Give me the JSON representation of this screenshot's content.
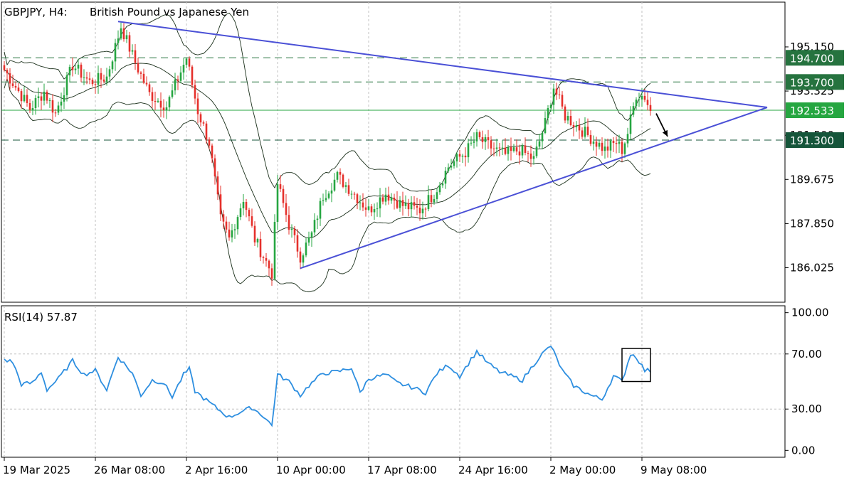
{
  "header": {
    "symbol_timeframe": "GBPJPY, H4:",
    "description": "British Pound vs Japanese Yen"
  },
  "colors": {
    "bull": "#26a641",
    "bear": "#e5302b",
    "trendline": "#4a50d6",
    "rsi": "#2e8fe0",
    "level": "#26733f",
    "level_dark": "#15553a",
    "current": "#26a641",
    "bands": "#1a2f1a",
    "grid": "#c0c0c0"
  },
  "chart_data": [
    {
      "type": "candlestick",
      "title": "GBPJPY, H4:  British Pound vs Japanese Yen",
      "ylim": [
        184.6,
        197.0
      ],
      "yticks": [
        {
          "label": "195.150",
          "value": 195.15
        },
        {
          "label": "193.325",
          "value": 193.325
        },
        {
          "label": "191.500",
          "value": 191.5
        },
        {
          "label": "189.675",
          "value": 189.675
        },
        {
          "label": "187.850",
          "value": 187.85
        },
        {
          "label": "186.025",
          "value": 186.025
        }
      ],
      "xticks": [
        {
          "label": "19 Mar 2025",
          "index": 0
        },
        {
          "label": "26 Mar 08:00",
          "index": 32
        },
        {
          "label": "2 Apr 16:00",
          "index": 64
        },
        {
          "label": "10 Apr 00:00",
          "index": 96
        },
        {
          "label": "17 Apr 08:00",
          "index": 128
        },
        {
          "label": "24 Apr 16:00",
          "index": 160
        },
        {
          "label": "2 May 00:00",
          "index": 192
        },
        {
          "label": "9 May 08:00",
          "index": 224
        }
      ],
      "levels": [
        {
          "label": "194.700",
          "value": 194.7,
          "style": "dashed"
        },
        {
          "label": "193.700",
          "value": 193.7,
          "style": "dashed"
        },
        {
          "label": "191.300",
          "value": 191.3,
          "style": "dashed",
          "dark": true
        }
      ],
      "current_price": {
        "label": "192.533",
        "value": 192.533
      },
      "trendlines": [
        {
          "from": {
            "index": 40,
            "value": 196.2
          },
          "to": {
            "index": 268,
            "value": 192.65
          }
        },
        {
          "from": {
            "index": 104,
            "value": 186.0
          },
          "to": {
            "index": 268,
            "value": 192.65
          }
        }
      ],
      "forecast_arrow": {
        "from": {
          "index": 229,
          "value": 192.4
        },
        "to": {
          "index": 233,
          "value": 191.45
        }
      },
      "anchors": [
        {
          "i": 0,
          "v": 194.2
        },
        {
          "i": 4,
          "v": 193.5
        },
        {
          "i": 9,
          "v": 192.6
        },
        {
          "i": 14,
          "v": 193.3
        },
        {
          "i": 18,
          "v": 192.4
        },
        {
          "i": 24,
          "v": 194.4
        },
        {
          "i": 30,
          "v": 193.7
        },
        {
          "i": 36,
          "v": 193.9
        },
        {
          "i": 41,
          "v": 196.0
        },
        {
          "i": 46,
          "v": 194.5
        },
        {
          "i": 51,
          "v": 193.2
        },
        {
          "i": 57,
          "v": 192.7
        },
        {
          "i": 64,
          "v": 194.7
        },
        {
          "i": 68,
          "v": 192.5
        },
        {
          "i": 72,
          "v": 191.2
        },
        {
          "i": 76,
          "v": 188.0
        },
        {
          "i": 79,
          "v": 187.2
        },
        {
          "i": 84,
          "v": 188.9
        },
        {
          "i": 88,
          "v": 187.2
        },
        {
          "i": 94,
          "v": 185.8
        },
        {
          "i": 96,
          "v": 189.5
        },
        {
          "i": 100,
          "v": 187.8
        },
        {
          "i": 104,
          "v": 186.5
        },
        {
          "i": 108,
          "v": 187.4
        },
        {
          "i": 112,
          "v": 189.0
        },
        {
          "i": 117,
          "v": 189.8
        },
        {
          "i": 122,
          "v": 189.2
        },
        {
          "i": 128,
          "v": 188.4
        },
        {
          "i": 134,
          "v": 189.1
        },
        {
          "i": 140,
          "v": 188.6
        },
        {
          "i": 146,
          "v": 188.4
        },
        {
          "i": 151,
          "v": 189.1
        },
        {
          "i": 156,
          "v": 190.2
        },
        {
          "i": 162,
          "v": 190.8
        },
        {
          "i": 166,
          "v": 191.4
        },
        {
          "i": 171,
          "v": 191.0
        },
        {
          "i": 176,
          "v": 190.7
        },
        {
          "i": 181,
          "v": 190.9
        },
        {
          "i": 186,
          "v": 190.5
        },
        {
          "i": 190,
          "v": 192.0
        },
        {
          "i": 193,
          "v": 193.5
        },
        {
          "i": 197,
          "v": 192.3
        },
        {
          "i": 202,
          "v": 191.8
        },
        {
          "i": 207,
          "v": 191.3
        },
        {
          "i": 211,
          "v": 190.9
        },
        {
          "i": 215,
          "v": 191.2
        },
        {
          "i": 217,
          "v": 190.9
        },
        {
          "i": 219,
          "v": 191.6
        },
        {
          "i": 222,
          "v": 193.2
        },
        {
          "i": 225,
          "v": 193.1
        },
        {
          "i": 227,
          "v": 192.5
        }
      ]
    },
    {
      "type": "line",
      "title": "RSI(14) 57.87",
      "series": [
        {
          "name": "RSI(14)",
          "last": 57.87
        }
      ],
      "ylim": [
        -5,
        105
      ],
      "yticks": [
        {
          "label": "100.00",
          "value": 100
        },
        {
          "label": "70.00",
          "value": 70
        },
        {
          "label": "30.00",
          "value": 30
        },
        {
          "label": "0.00",
          "value": 0
        }
      ],
      "dashed_levels": [
        70,
        30
      ],
      "anchors": [
        {
          "i": 0,
          "v": 66
        },
        {
          "i": 3,
          "v": 64
        },
        {
          "i": 6,
          "v": 48
        },
        {
          "i": 10,
          "v": 49
        },
        {
          "i": 13,
          "v": 57
        },
        {
          "i": 15,
          "v": 44
        },
        {
          "i": 19,
          "v": 52
        },
        {
          "i": 24,
          "v": 65
        },
        {
          "i": 28,
          "v": 55
        },
        {
          "i": 32,
          "v": 58
        },
        {
          "i": 36,
          "v": 44
        },
        {
          "i": 40,
          "v": 68
        },
        {
          "i": 45,
          "v": 56
        },
        {
          "i": 48,
          "v": 40
        },
        {
          "i": 52,
          "v": 51
        },
        {
          "i": 56,
          "v": 49
        },
        {
          "i": 59,
          "v": 39
        },
        {
          "i": 63,
          "v": 55
        },
        {
          "i": 65,
          "v": 59
        },
        {
          "i": 67,
          "v": 43
        },
        {
          "i": 70,
          "v": 38
        },
        {
          "i": 75,
          "v": 30
        },
        {
          "i": 79,
          "v": 24
        },
        {
          "i": 83,
          "v": 28
        },
        {
          "i": 87,
          "v": 31
        },
        {
          "i": 91,
          "v": 25
        },
        {
          "i": 94,
          "v": 18
        },
        {
          "i": 96,
          "v": 55
        },
        {
          "i": 100,
          "v": 50
        },
        {
          "i": 104,
          "v": 40
        },
        {
          "i": 107,
          "v": 47
        },
        {
          "i": 112,
          "v": 56
        },
        {
          "i": 117,
          "v": 57
        },
        {
          "i": 122,
          "v": 60
        },
        {
          "i": 125,
          "v": 42
        },
        {
          "i": 128,
          "v": 52
        },
        {
          "i": 134,
          "v": 55
        },
        {
          "i": 138,
          "v": 49
        },
        {
          "i": 143,
          "v": 46
        },
        {
          "i": 148,
          "v": 42
        },
        {
          "i": 152,
          "v": 56
        },
        {
          "i": 156,
          "v": 62
        },
        {
          "i": 160,
          "v": 54
        },
        {
          "i": 166,
          "v": 72
        },
        {
          "i": 170,
          "v": 63
        },
        {
          "i": 174,
          "v": 57
        },
        {
          "i": 178,
          "v": 54
        },
        {
          "i": 182,
          "v": 51
        },
        {
          "i": 188,
          "v": 68
        },
        {
          "i": 192,
          "v": 76
        },
        {
          "i": 196,
          "v": 58
        },
        {
          "i": 200,
          "v": 47
        },
        {
          "i": 206,
          "v": 40
        },
        {
          "i": 210,
          "v": 37
        },
        {
          "i": 214,
          "v": 54
        },
        {
          "i": 217,
          "v": 50
        },
        {
          "i": 220,
          "v": 70
        },
        {
          "i": 222,
          "v": 68
        },
        {
          "i": 225,
          "v": 58
        }
      ],
      "highlight_box": {
        "i0": 217,
        "i1": 227,
        "v0": 50,
        "v1": 74
      }
    }
  ]
}
